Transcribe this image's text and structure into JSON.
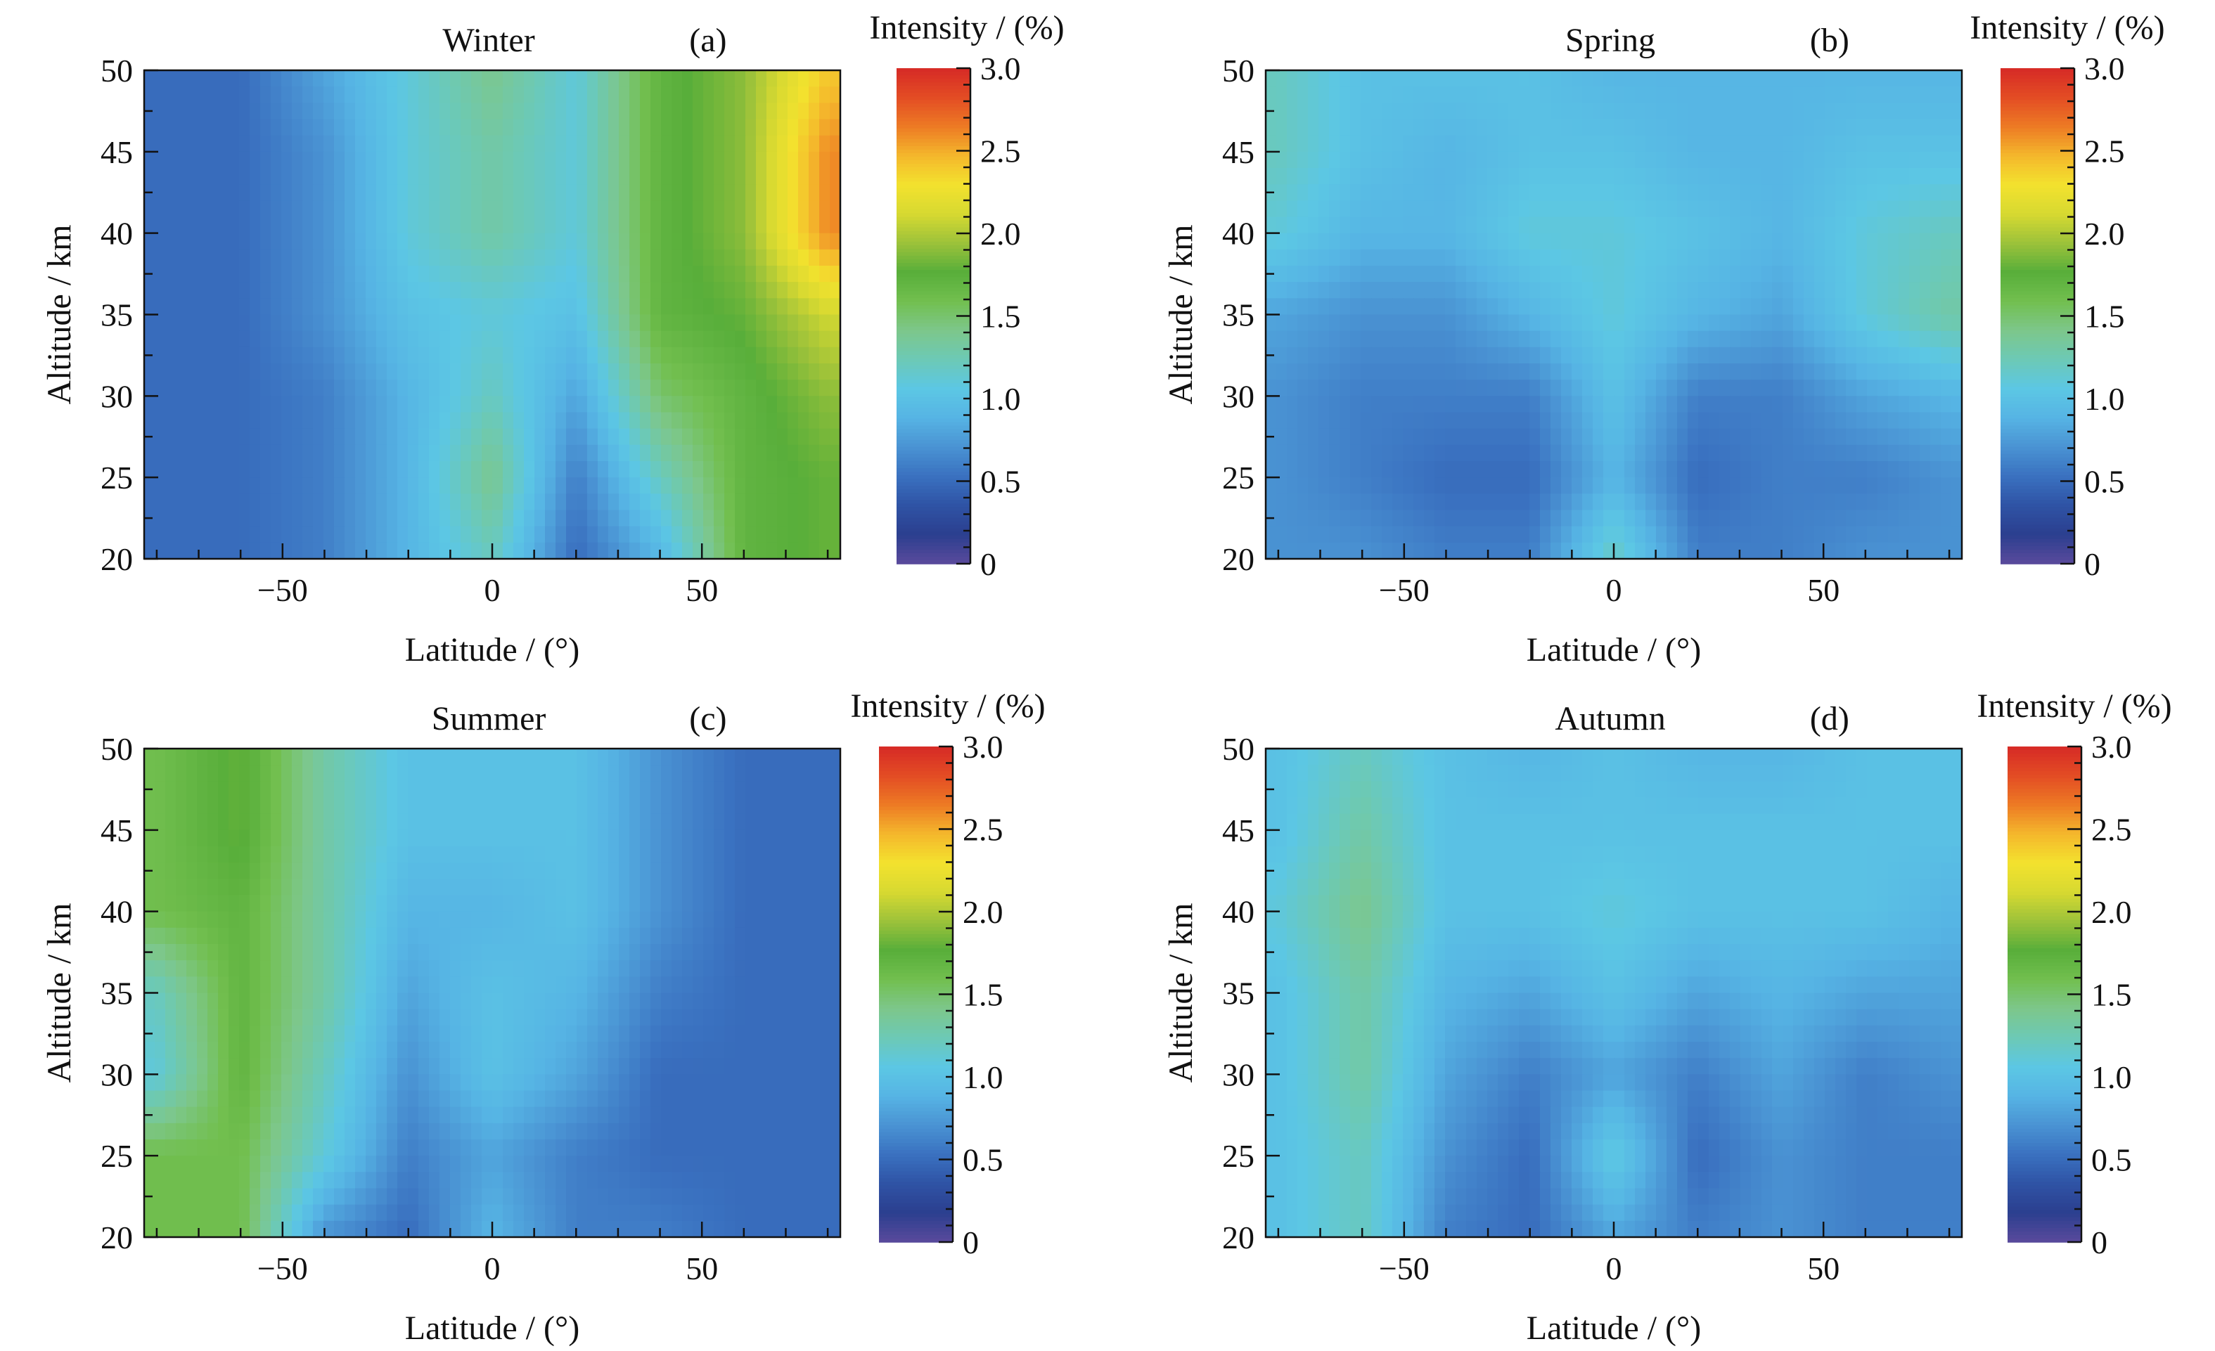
{
  "colors": {
    "colormap": [
      "#5a4a9c",
      "#2b3f8f",
      "#2f53a5",
      "#3a71c0",
      "#4a93d3",
      "#56b4e4",
      "#5cc7e4",
      "#6cc9b6",
      "#7dc78b",
      "#72bf4f",
      "#58ae3a",
      "#9cc23a",
      "#d7d931",
      "#f3e22e",
      "#f4b72c",
      "#ed7a24",
      "#e34c24",
      "#d62a26"
    ],
    "axis": "#111111"
  },
  "chart_data": [
    {
      "type": "heatmap",
      "title": "Winter",
      "panel_label": "(a)",
      "xlabel": "Latitude / (°)",
      "ylabel": "Altitude / km",
      "xlim": [
        -83,
        83
      ],
      "ylim": [
        20,
        50
      ],
      "x_ticks": [
        -50,
        0,
        50
      ],
      "x_tick_labels": [
        "−50",
        "0",
        "50"
      ],
      "y_ticks": [
        20,
        25,
        30,
        35,
        40,
        45,
        50
      ],
      "y_tick_labels": [
        "20",
        "25",
        "30",
        "35",
        "40",
        "45",
        "50"
      ],
      "colorbar": {
        "label": "Intensity / (%)",
        "range": [
          0,
          3.0
        ],
        "ticks": [
          0,
          0.5,
          1.0,
          1.5,
          2.0,
          2.5,
          3.0
        ],
        "tick_labels": [
          "0",
          "0.5",
          "1.0",
          "1.5",
          "2.0",
          "2.5",
          "3.0"
        ]
      },
      "latitudes": [
        -80,
        -60,
        -40,
        -20,
        0,
        20,
        40,
        60,
        80
      ],
      "altitudes": [
        20,
        25,
        30,
        35,
        40,
        45,
        50
      ],
      "z": [
        [
          0.5,
          0.5,
          0.6,
          0.9,
          1.2,
          0.5,
          0.9,
          1.7,
          1.8
        ],
        [
          0.5,
          0.5,
          0.6,
          0.9,
          1.4,
          0.6,
          1.2,
          1.7,
          1.8
        ],
        [
          0.5,
          0.5,
          0.6,
          0.9,
          1.2,
          0.8,
          1.5,
          1.7,
          1.9
        ],
        [
          0.5,
          0.5,
          0.7,
          1.0,
          1.1,
          1.0,
          1.7,
          1.8,
          2.1
        ],
        [
          0.5,
          0.5,
          0.7,
          1.1,
          1.3,
          1.1,
          1.7,
          1.9,
          2.6
        ],
        [
          0.5,
          0.5,
          0.7,
          1.1,
          1.3,
          1.1,
          1.7,
          1.9,
          2.6
        ],
        [
          0.5,
          0.5,
          0.8,
          1.1,
          1.4,
          1.1,
          1.7,
          1.9,
          2.4
        ]
      ]
    },
    {
      "type": "heatmap",
      "title": "Spring",
      "panel_label": "(b)",
      "xlabel": "Latitude / (°)",
      "ylabel": "Altitude / km",
      "xlim": [
        -83,
        83
      ],
      "ylim": [
        20,
        50
      ],
      "x_ticks": [
        -50,
        0,
        50
      ],
      "x_tick_labels": [
        "−50",
        "0",
        "50"
      ],
      "y_ticks": [
        20,
        25,
        30,
        35,
        40,
        45,
        50
      ],
      "y_tick_labels": [
        "20",
        "25",
        "30",
        "35",
        "40",
        "45",
        "50"
      ],
      "colorbar": {
        "label": "Intensity / (%)",
        "range": [
          0,
          3.0
        ],
        "ticks": [
          0,
          0.5,
          1.0,
          1.5,
          2.0,
          2.5,
          3.0
        ],
        "tick_labels": [
          "0",
          "0.5",
          "1.0",
          "1.5",
          "2.0",
          "2.5",
          "3.0"
        ]
      },
      "latitudes": [
        -80,
        -60,
        -40,
        -20,
        0,
        20,
        40,
        60,
        80
      ],
      "altitudes": [
        20,
        25,
        30,
        35,
        40,
        45,
        50
      ],
      "z": [
        [
          0.7,
          0.7,
          0.6,
          0.6,
          1.2,
          0.6,
          0.6,
          0.7,
          0.7
        ],
        [
          0.7,
          0.6,
          0.5,
          0.5,
          0.9,
          0.5,
          0.6,
          0.6,
          0.7
        ],
        [
          0.7,
          0.6,
          0.6,
          0.6,
          1.0,
          0.6,
          0.6,
          0.8,
          0.9
        ],
        [
          0.8,
          0.7,
          0.7,
          0.9,
          1.1,
          0.9,
          0.8,
          1.1,
          1.3
        ],
        [
          1.1,
          0.9,
          0.9,
          1.1,
          1.1,
          1.0,
          0.9,
          1.1,
          1.2
        ],
        [
          1.2,
          1.0,
          0.9,
          1.0,
          1.0,
          0.9,
          0.9,
          1.0,
          1.0
        ],
        [
          1.2,
          1.0,
          1.0,
          1.0,
          0.9,
          0.9,
          0.9,
          0.9,
          0.9
        ]
      ]
    },
    {
      "type": "heatmap",
      "title": "Summer",
      "panel_label": "(c)",
      "xlabel": "Latitude / (°)",
      "ylabel": "Altitude / km",
      "xlim": [
        -83,
        83
      ],
      "ylim": [
        20,
        50
      ],
      "x_ticks": [
        -50,
        0,
        50
      ],
      "x_tick_labels": [
        "−50",
        "0",
        "50"
      ],
      "y_ticks": [
        20,
        25,
        30,
        35,
        40,
        45,
        50
      ],
      "y_tick_labels": [
        "20",
        "25",
        "30",
        "35",
        "40",
        "45",
        "50"
      ],
      "colorbar": {
        "label": "Intensity / (%)",
        "range": [
          0,
          3.0
        ],
        "ticks": [
          0,
          0.5,
          1.0,
          1.5,
          2.0,
          2.5,
          3.0
        ],
        "tick_labels": [
          "0",
          "0.5",
          "1.0",
          "1.5",
          "2.0",
          "2.5",
          "3.0"
        ]
      },
      "latitudes": [
        -80,
        -60,
        -40,
        -20,
        0,
        20,
        40,
        60,
        80
      ],
      "altitudes": [
        20,
        25,
        30,
        35,
        40,
        45,
        50
      ],
      "z": [
        [
          1.6,
          1.6,
          0.7,
          0.5,
          0.9,
          0.6,
          0.6,
          0.5,
          0.5
        ],
        [
          1.6,
          1.6,
          1.1,
          0.6,
          0.8,
          0.6,
          0.5,
          0.5,
          0.5
        ],
        [
          1.1,
          1.7,
          1.2,
          0.7,
          1.0,
          0.8,
          0.5,
          0.5,
          0.5
        ],
        [
          1.2,
          1.7,
          1.3,
          0.8,
          1.0,
          0.9,
          0.6,
          0.5,
          0.5
        ],
        [
          1.6,
          1.7,
          1.3,
          0.9,
          0.9,
          1.0,
          0.7,
          0.5,
          0.5
        ],
        [
          1.6,
          1.8,
          1.3,
          1.0,
          1.0,
          1.0,
          0.7,
          0.5,
          0.5
        ],
        [
          1.6,
          1.8,
          1.3,
          1.0,
          1.0,
          1.0,
          0.7,
          0.5,
          0.5
        ]
      ]
    },
    {
      "type": "heatmap",
      "title": "Autumn",
      "panel_label": "(d)",
      "xlabel": "Latitude / (°)",
      "ylabel": "Altitude / km",
      "xlim": [
        -83,
        83
      ],
      "ylim": [
        20,
        50
      ],
      "x_ticks": [
        -50,
        0,
        50
      ],
      "x_tick_labels": [
        "−50",
        "0",
        "50"
      ],
      "y_ticks": [
        20,
        25,
        30,
        35,
        40,
        45,
        50
      ],
      "y_tick_labels": [
        "20",
        "25",
        "30",
        "35",
        "40",
        "45",
        "50"
      ],
      "colorbar": {
        "label": "Intensity / (%)",
        "range": [
          0,
          3.0
        ],
        "ticks": [
          0,
          0.5,
          1.0,
          1.5,
          2.0,
          2.5,
          3.0
        ],
        "tick_labels": [
          "0",
          "0.5",
          "1.0",
          "1.5",
          "2.0",
          "2.5",
          "3.0"
        ]
      },
      "latitudes": [
        -80,
        -60,
        -40,
        -20,
        0,
        20,
        40,
        60,
        80
      ],
      "altitudes": [
        20,
        25,
        30,
        35,
        40,
        45,
        50
      ],
      "z": [
        [
          1.0,
          1.2,
          0.6,
          0.5,
          0.8,
          0.6,
          0.7,
          0.6,
          0.6
        ],
        [
          1.0,
          1.2,
          0.7,
          0.5,
          1.1,
          0.5,
          0.7,
          0.6,
          0.6
        ],
        [
          1.0,
          1.3,
          0.8,
          0.6,
          0.8,
          0.6,
          0.8,
          0.6,
          0.7
        ],
        [
          1.0,
          1.3,
          0.9,
          0.8,
          1.0,
          0.8,
          0.9,
          0.8,
          0.8
        ],
        [
          1.1,
          1.4,
          1.0,
          1.0,
          1.1,
          1.0,
          1.0,
          1.0,
          0.9
        ],
        [
          1.0,
          1.3,
          1.0,
          1.0,
          1.0,
          1.0,
          1.0,
          1.0,
          1.0
        ],
        [
          1.0,
          1.2,
          1.0,
          0.9,
          1.0,
          0.9,
          0.9,
          1.0,
          1.0
        ]
      ]
    }
  ]
}
